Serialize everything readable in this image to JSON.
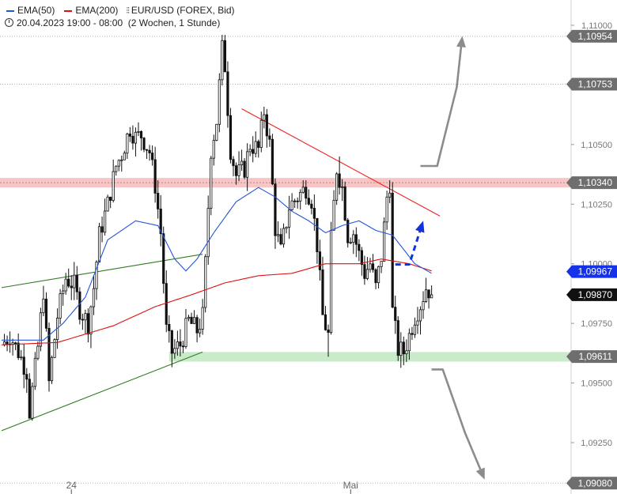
{
  "header": {
    "ema50_label": "EMA(50)",
    "ema200_label": "EMA(200)",
    "symbol_label": "EUR/USD (FOREX, Bid)",
    "range_label": "20.04.2023 19:00 - 08:00",
    "interval_label": "(2 Wochen, 1 Stunde)"
  },
  "colors": {
    "ema50": "#2255dd",
    "ema200": "#dd1111",
    "candle": "#111111",
    "resistance_zone": "#f4b8b8",
    "support_zone": "#bfe8bf",
    "trend_up_channel": "#2d7a1f",
    "trend_down": "#ee2222",
    "arrow_gray": "#8c8c8c",
    "arrow_blue": "#1133dd",
    "tag_gray": "#6e6e6e",
    "tag_blue": "#1433e8",
    "tag_black": "#111111"
  },
  "chart_data": {
    "type": "candlestick",
    "symbol": "EUR/USD",
    "timeframe": "1 hour",
    "y_range": [
      1.0904,
      1.1107
    ],
    "y_ticks": [
      {
        "value": 1.11,
        "label": "1,11000"
      },
      {
        "value": 1.105,
        "label": "1,10500"
      },
      {
        "value": 1.1025,
        "label": "1,10250"
      },
      {
        "value": 1.1,
        "label": "1,10000"
      },
      {
        "value": 1.0975,
        "label": "1,09750"
      },
      {
        "value": 1.095,
        "label": "1,09500"
      },
      {
        "value": 1.0925,
        "label": "1,09250"
      }
    ],
    "x_ticks": [
      {
        "bar": 25,
        "label": "24"
      },
      {
        "bar": 125,
        "label": "Mai"
      }
    ],
    "price_tags": [
      {
        "value": 1.10954,
        "label": "1,10954",
        "style": "gray",
        "level_line": true
      },
      {
        "value": 1.10753,
        "label": "1,10753",
        "style": "gray",
        "level_line": true
      },
      {
        "value": 1.1034,
        "label": "1,10340",
        "style": "gray",
        "level_line": false
      },
      {
        "value": 1.09967,
        "label": "1,09967",
        "style": "blue",
        "level_line": false
      },
      {
        "value": 1.0987,
        "label": "1,09870",
        "style": "black",
        "level_line": false
      },
      {
        "value": 1.09611,
        "label": "1,09611",
        "style": "gray",
        "level_line": false
      },
      {
        "value": 1.0908,
        "label": "1,09080",
        "style": "gray",
        "level_line": true
      }
    ],
    "zones": [
      {
        "name": "Widerstand",
        "from": 1.1032,
        "to": 1.1036,
        "color": "resistance_zone"
      },
      {
        "name": "Unterstützung",
        "from": 1.0959,
        "to": 1.0963,
        "color": "support_zone"
      }
    ],
    "path_knots": [
      [
        0,
        1.0966
      ],
      [
        3,
        1.097
      ],
      [
        6,
        1.0963
      ],
      [
        9,
        1.0955
      ],
      [
        10,
        1.0938
      ],
      [
        13,
        1.0965
      ],
      [
        15,
        1.0989
      ],
      [
        17,
        1.095
      ],
      [
        20,
        1.0978
      ],
      [
        23,
        1.0994
      ],
      [
        26,
        1.0991
      ],
      [
        28,
        1.0981
      ],
      [
        31,
        1.0975
      ],
      [
        33,
        1.099
      ],
      [
        35,
        1.1012
      ],
      [
        38,
        1.1025
      ],
      [
        41,
        1.1041
      ],
      [
        43,
        1.1046
      ],
      [
        46,
        1.1057
      ],
      [
        48,
        1.1053
      ],
      [
        50,
        1.1054
      ],
      [
        53,
        1.1047
      ],
      [
        55,
        1.1033
      ],
      [
        57,
        1.1013
      ],
      [
        59,
        1.0972
      ],
      [
        61,
        1.0963
      ],
      [
        64,
        1.0966
      ],
      [
        67,
        1.0976
      ],
      [
        70,
        1.0972
      ],
      [
        72,
        1.0978
      ],
      [
        73,
        1.1
      ],
      [
        75,
        1.1048
      ],
      [
        77,
        1.106
      ],
      [
        79,
        1.109
      ],
      [
        80,
        1.1083
      ],
      [
        82,
        1.1048
      ],
      [
        84,
        1.1037
      ],
      [
        87,
        1.104
      ],
      [
        89,
        1.105
      ],
      [
        92,
        1.1048
      ],
      [
        94,
        1.1064
      ],
      [
        96,
        1.105
      ],
      [
        98,
        1.1015
      ],
      [
        100,
        1.1005
      ],
      [
        103,
        1.1024
      ],
      [
        106,
        1.1028
      ],
      [
        109,
        1.1032
      ],
      [
        111,
        1.1027
      ],
      [
        113,
        1.1008
      ],
      [
        115,
        1.0978
      ],
      [
        117,
        1.097
      ],
      [
        118,
        1.101
      ],
      [
        120,
        1.104
      ],
      [
        122,
        1.1032
      ],
      [
        124,
        1.1012
      ],
      [
        126,
        1.1013
      ],
      [
        128,
        1.1004
      ],
      [
        130,
        1.0996
      ],
      [
        132,
        1.1
      ],
      [
        134,
        1.099
      ],
      [
        136,
        1.1003
      ],
      [
        138,
        1.1028
      ],
      [
        139,
        1.1034
      ],
      [
        140,
        1.098
      ],
      [
        142,
        1.0964
      ],
      [
        144,
        1.0963
      ],
      [
        146,
        1.097
      ],
      [
        148,
        1.0978
      ],
      [
        150,
        1.0983
      ],
      [
        152,
        1.099
      ],
      [
        154,
        1.0988
      ]
    ],
    "wick_extremes": [
      {
        "bar": 10,
        "low": 1.0937
      },
      {
        "bar": 79,
        "high": 1.1096
      },
      {
        "bar": 117,
        "low": 1.0961
      },
      {
        "bar": 121,
        "high": 1.1045
      },
      {
        "bar": 139,
        "high": 1.1035
      }
    ],
    "last_close": 1.0987,
    "ema50_knots": [
      [
        0,
        1.0968
      ],
      [
        15,
        1.0968
      ],
      [
        22,
        1.0975
      ],
      [
        30,
        1.0986
      ],
      [
        38,
        1.101
      ],
      [
        48,
        1.1018
      ],
      [
        56,
        1.1016
      ],
      [
        62,
        1.1002
      ],
      [
        66,
        1.0997
      ],
      [
        70,
        1.1002
      ],
      [
        76,
        1.1013
      ],
      [
        84,
        1.1026
      ],
      [
        92,
        1.1032
      ],
      [
        98,
        1.1028
      ],
      [
        104,
        1.1022
      ],
      [
        110,
        1.1018
      ],
      [
        116,
        1.1013
      ],
      [
        122,
        1.1016
      ],
      [
        128,
        1.1018
      ],
      [
        134,
        1.1014
      ],
      [
        140,
        1.1012
      ],
      [
        148,
        1.1
      ],
      [
        154,
        1.0996
      ]
    ],
    "ema200_knots": [
      [
        0,
        1.0966
      ],
      [
        20,
        1.0967
      ],
      [
        40,
        1.0974
      ],
      [
        55,
        1.0982
      ],
      [
        68,
        1.0987
      ],
      [
        80,
        1.0992
      ],
      [
        92,
        1.0995
      ],
      [
        104,
        1.0996
      ],
      [
        116,
        1.1
      ],
      [
        128,
        1.1
      ],
      [
        136,
        1.1002
      ],
      [
        146,
        1.1
      ],
      [
        154,
        1.0997
      ]
    ],
    "trendlines": [
      {
        "name": "upper-channel-line",
        "from": [
          0,
          1.099
        ],
        "to": [
          72,
          1.1004
        ],
        "color": "trend_up_channel"
      },
      {
        "name": "lower-channel-line",
        "from": [
          0,
          1.093
        ],
        "to": [
          72,
          1.0963
        ],
        "color": "trend_up_channel"
      },
      {
        "name": "descending-resistance-line",
        "from": [
          86,
          1.1065
        ],
        "to": [
          157,
          1.102
        ],
        "color": "trend_down"
      }
    ],
    "support_extension": {
      "from_bar": 60,
      "color": "support_zone"
    },
    "scenario_arrows": [
      {
        "name": "bullish-projection-arrow",
        "color": "arrow_gray",
        "points": [
          [
            150,
            1.1041
          ],
          [
            156,
            1.1041
          ],
          [
            163,
            1.1074
          ]
        ],
        "head_to": [
          165,
          1.10955
        ]
      },
      {
        "name": "bearish-projection-arrow",
        "color": "arrow_gray",
        "points": [
          [
            154,
            1.09557
          ],
          [
            158,
            1.09557
          ],
          [
            166,
            1.0929
          ]
        ],
        "head_to": [
          173,
          1.09095
        ]
      },
      {
        "name": "breakout-projection-arrow",
        "color": "arrow_blue",
        "dashed": true,
        "points": [
          [
            141,
            1.09997
          ],
          [
            146,
            1.09997
          ]
        ],
        "head_to": [
          151,
          1.1018
        ]
      }
    ]
  }
}
